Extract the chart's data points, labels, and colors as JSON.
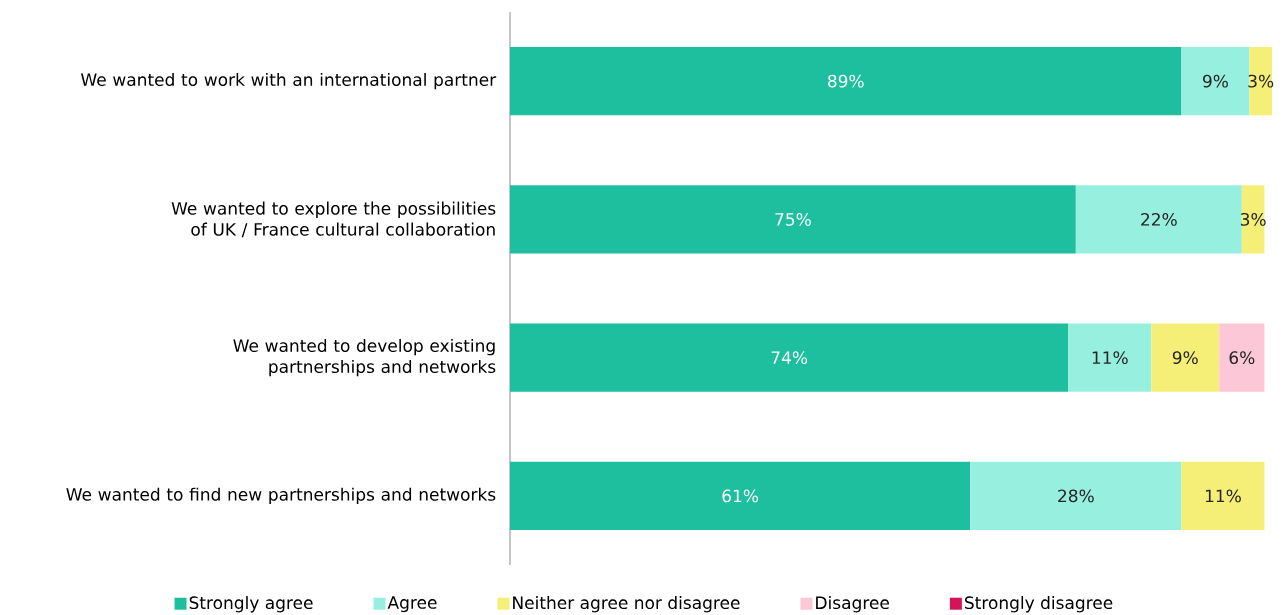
{
  "chart_data": {
    "type": "bar",
    "orientation": "horizontal",
    "stacked": true,
    "categories": [
      "We wanted to work with an international partner",
      "We wanted to explore the possibilities of UK / France cultural collaboration",
      "We wanted to develop existing partnerships and networks",
      "We wanted to find new partnerships and networks"
    ],
    "series": [
      {
        "name": "Strongly agree",
        "color": "#1dbf9f",
        "values": [
          89,
          75,
          74,
          61
        ],
        "value_labels": [
          "89%",
          "75%",
          "74%",
          "61%"
        ]
      },
      {
        "name": "Agree",
        "color": "#96efdf",
        "values": [
          9,
          22,
          11,
          28
        ],
        "value_labels": [
          "9%",
          "22%",
          "11%",
          "28%"
        ]
      },
      {
        "name": "Neither agree nor disagree",
        "color": "#f5ef78",
        "values": [
          3,
          3,
          9,
          11
        ],
        "value_labels": [
          "3%",
          "3%",
          "9%",
          "11%"
        ]
      },
      {
        "name": "Disagree",
        "color": "#fcc8d8",
        "values": [
          null,
          null,
          6,
          null
        ],
        "value_labels": [
          null,
          null,
          "6%",
          null
        ]
      },
      {
        "name": "Strongly disagree",
        "color": "#d4145a",
        "values": [
          null,
          null,
          null,
          null
        ]
      }
    ],
    "xlim": [
      0,
      101
    ],
    "legend": "bottom",
    "tick_labels": "y"
  }
}
